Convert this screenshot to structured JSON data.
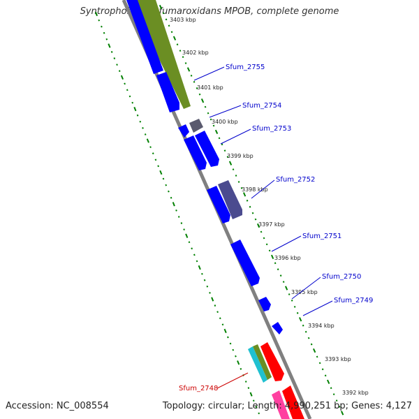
{
  "title": "Syntrophobacter fumaroxidans MPOB, complete genome",
  "accession": "Accession: NC_008554",
  "summary": "Topology: circular; Length: 4,990,251 bp; Genes: 4,127",
  "colors": {
    "backbone": "#808080",
    "ticks": "#008000",
    "gene_label": "#0000cc",
    "highlight_label": "#cc0000",
    "blue_gene": "#0000ff",
    "olive_gene": "#6b8e23",
    "purple_gene": "#4b4b8f",
    "gray_gene": "#5a5a6e",
    "red_gene": "#ff0000",
    "cyan_gene": "#20c0d0",
    "pink_gene": "#ff40a0"
  },
  "scale_labels": [
    "3403 kbp",
    "3402 kbp",
    "3401 kbp",
    "3400 kbp",
    "3399 kbp",
    "3398 kbp",
    "3397 kbp",
    "3396 kbp",
    "3395 kbp",
    "3394 kbp",
    "3393 kbp",
    "3392 kbp"
  ],
  "gene_labels": [
    {
      "text": "Sfum_2755",
      "highlight": false
    },
    {
      "text": "Sfum_2754",
      "highlight": false
    },
    {
      "text": "Sfum_2753",
      "highlight": false
    },
    {
      "text": "Sfum_2752",
      "highlight": false
    },
    {
      "text": "Sfum_2751",
      "highlight": false
    },
    {
      "text": "Sfum_2750",
      "highlight": false
    },
    {
      "text": "Sfum_2749",
      "highlight": false
    },
    {
      "text": "Sfum_2748",
      "highlight": true
    }
  ]
}
